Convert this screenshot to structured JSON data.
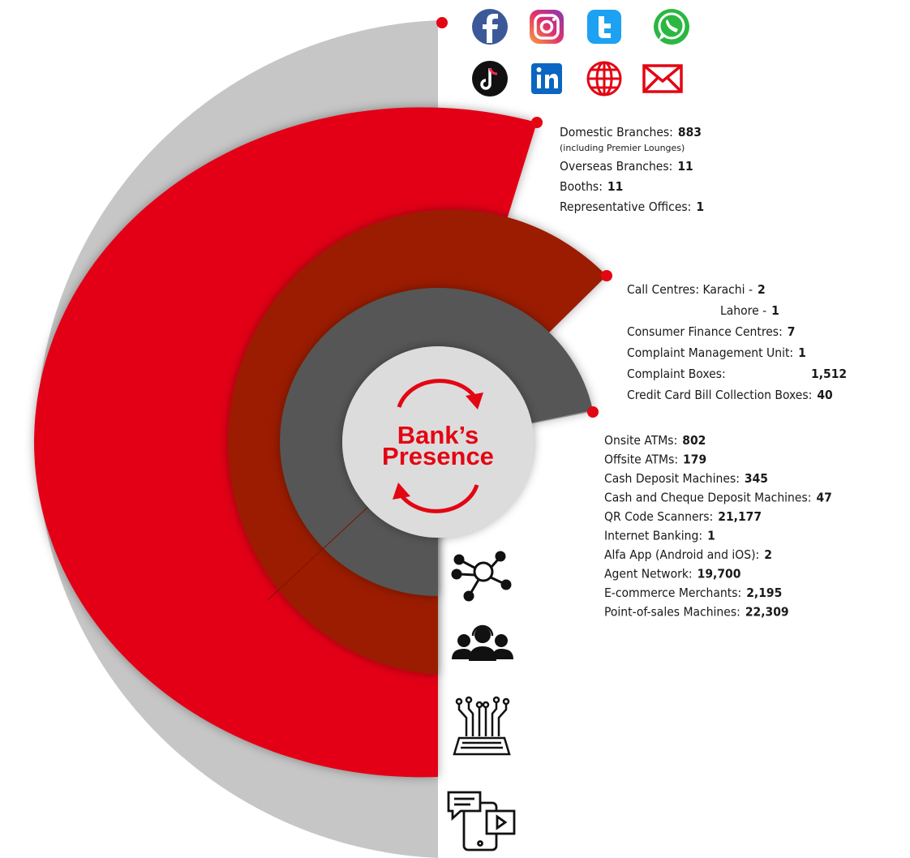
{
  "center_title": [
    "Bank’s",
    "Presence"
  ],
  "groups": [
    {
      "items": [
        {
          "label": "Domestic Branches:",
          "value": "883",
          "note": "(including Premier Lounges)"
        },
        {
          "label": "Overseas Branches:",
          "value": "11"
        },
        {
          "label": "Booths:",
          "value": "11"
        },
        {
          "label": "Representative Offices:",
          "value": "1"
        }
      ]
    },
    {
      "items": [
        {
          "label": "Call Centres: Karachi -",
          "value": "2"
        },
        {
          "label": "Lahore -",
          "value": "1"
        },
        {
          "label": "Consumer Finance Centres:",
          "value": "7"
        },
        {
          "label": "Complaint Management Unit:",
          "value": "1"
        },
        {
          "label": "Complaint Boxes:",
          "value": "1,512"
        },
        {
          "label": "Credit Card Bill Collection Boxes:",
          "value": "40"
        }
      ]
    },
    {
      "items": [
        {
          "label": "Onsite ATMs:",
          "value": "802"
        },
        {
          "label": "Offsite ATMs:",
          "value": "179"
        },
        {
          "label": "Cash Deposit Machines:",
          "value": "345"
        },
        {
          "label": "Cash and Cheque Deposit Machines:",
          "value": "47"
        },
        {
          "label": "QR Code Scanners:",
          "value": "21,177"
        },
        {
          "label": "Internet Banking:",
          "value": "1"
        },
        {
          "label": "Alfa App (Android and iOS):",
          "value": "2"
        },
        {
          "label": "Agent Network:",
          "value": "19,700"
        },
        {
          "label": "E-commerce Merchants:",
          "value": "2,195"
        },
        {
          "label": "Point-of-sales Machines:",
          "value": "22,309"
        }
      ]
    }
  ]
}
